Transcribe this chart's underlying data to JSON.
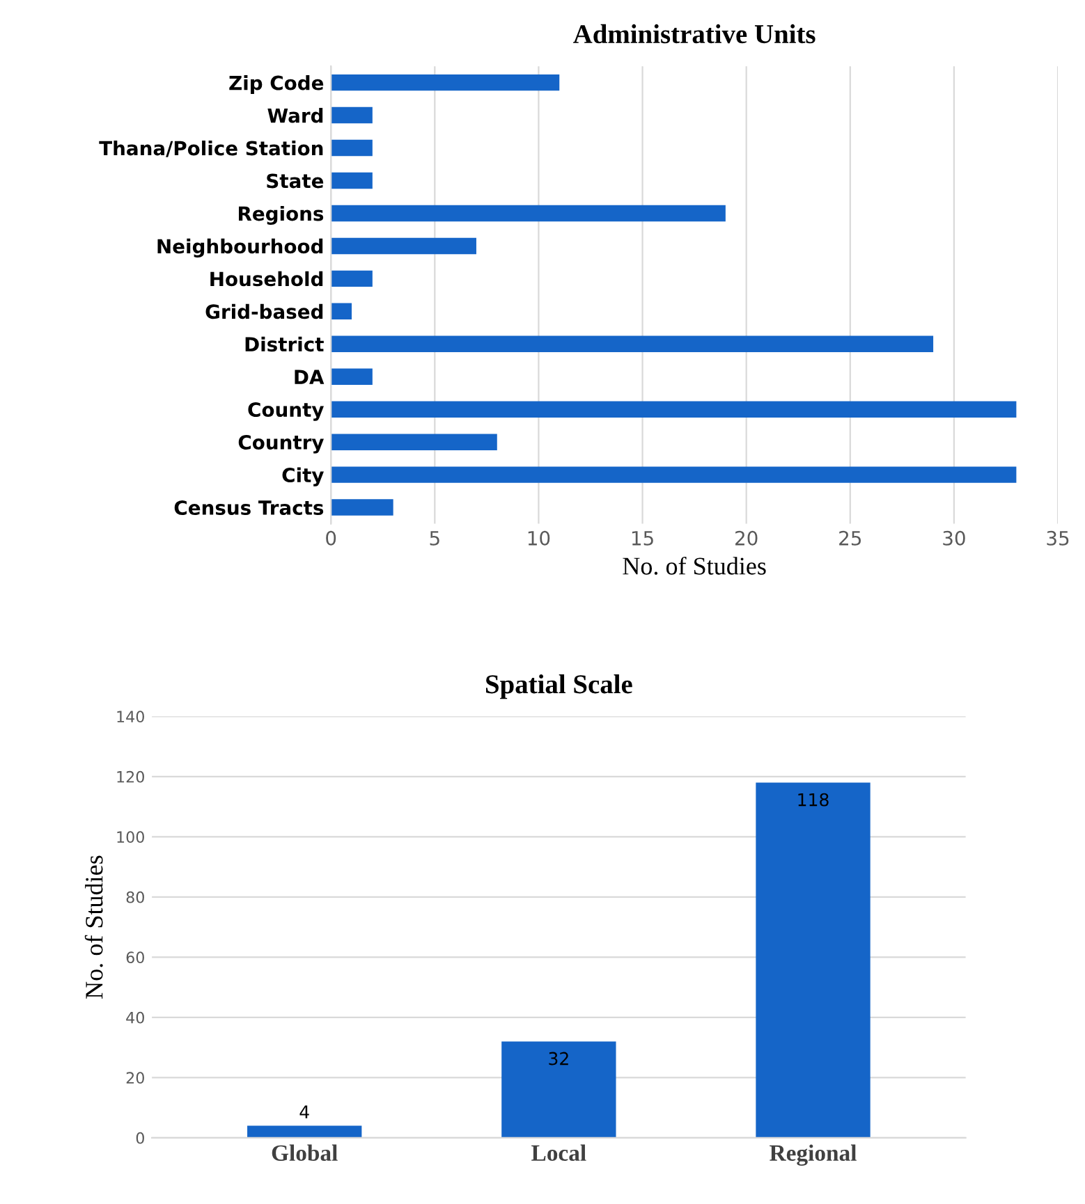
{
  "chart_data": [
    {
      "type": "bar",
      "title": "Administrative Units",
      "xlabel": "No. of Studies",
      "orientation": "horizontal",
      "categories": [
        "Zip Code",
        "Ward",
        "Thana/Police Station",
        "State",
        "Regions",
        "Neighbourhood",
        "Household",
        "Grid-based",
        "District",
        "DA",
        "County",
        "Country",
        "City",
        "Census Tracts"
      ],
      "values": [
        11,
        2,
        2,
        2,
        19,
        7,
        2,
        1,
        29,
        2,
        33,
        8,
        33,
        3
      ],
      "color": "#1565c8",
      "xlim": [
        0,
        35
      ],
      "xticks": [
        0,
        5,
        10,
        15,
        20,
        25,
        30,
        35
      ],
      "grid": "x"
    },
    {
      "type": "bar",
      "title": "Spatial Scale",
      "ylabel": "No. of Studies",
      "categories": [
        "Global",
        "Local",
        "Regional"
      ],
      "values": [
        4,
        32,
        118
      ],
      "color": "#1565c8",
      "ylim": [
        0,
        140
      ],
      "yticks": [
        0,
        20,
        40,
        60,
        80,
        100,
        120,
        140
      ],
      "grid": "y",
      "data_labels": true
    }
  ]
}
